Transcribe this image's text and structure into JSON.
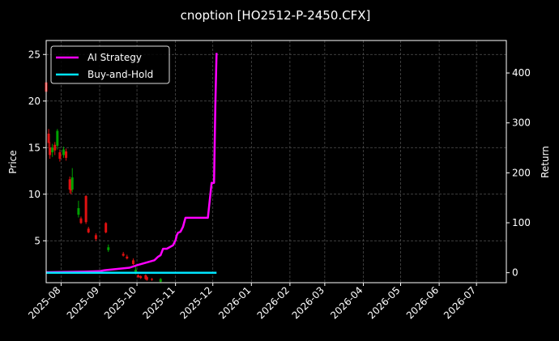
{
  "chart_data": {
    "type": "candlestick+line",
    "title": "cnoption [HO2512-P-2450.CFX]",
    "ylabel_left": "Price",
    "ylabel_right": "Return",
    "xlabel": "",
    "x_ticks": [
      "2025-08",
      "2025-09",
      "2025-10",
      "2025-11",
      "2025-12",
      "2026-01",
      "2026-02",
      "2026-03",
      "2026-04",
      "2026-05",
      "2026-06",
      "2026-07"
    ],
    "xlim": [
      "2025-07-20",
      "2026-07-25"
    ],
    "ylim_left": [
      0.5,
      26.5
    ],
    "yticks_left": [
      5,
      10,
      15,
      20,
      25
    ],
    "ylim_right": [
      -20,
      465
    ],
    "yticks_right": [
      0,
      100,
      200,
      300,
      400
    ],
    "grid": true,
    "legend_position": "top-left",
    "series": [
      {
        "name": "AI Strategy",
        "color": "#ff00ff",
        "axis": "right",
        "x": [
          "2025-07-20",
          "2025-08-20",
          "2025-09-01",
          "2025-09-05",
          "2025-09-25",
          "2025-10-01",
          "2025-10-15",
          "2025-10-18",
          "2025-10-20",
          "2025-10-22",
          "2025-10-25",
          "2025-10-30",
          "2025-11-01",
          "2025-11-02",
          "2025-11-03",
          "2025-11-05",
          "2025-11-07",
          "2025-11-09",
          "2025-11-10",
          "2025-11-11",
          "2025-11-12",
          "2025-11-15",
          "2025-11-18",
          "2025-11-20",
          "2025-11-25",
          "2025-11-27",
          "2025-11-30",
          "2025-12-01",
          "2025-12-02",
          "2025-12-03",
          "2025-12-04"
        ],
        "values": [
          1,
          2,
          3,
          5,
          10,
          15,
          25,
          32,
          35,
          48,
          48,
          55,
          65,
          75,
          80,
          82,
          92,
          110,
          110,
          110,
          110,
          110,
          110,
          110,
          110,
          110,
          180,
          180,
          180,
          335,
          440
        ]
      },
      {
        "name": "Buy-and-Hold",
        "color": "#00e5ff",
        "axis": "right",
        "x": [
          "2025-07-20",
          "2025-12-04"
        ],
        "values": [
          0,
          0
        ]
      }
    ],
    "candles": [
      {
        "date": "2025-07-20",
        "open": 22.0,
        "close": 21.0,
        "high": 22.8,
        "low": 21.0
      },
      {
        "date": "2025-07-22",
        "open": 16.5,
        "close": 15.5,
        "high": 17.0,
        "low": 15.0
      },
      {
        "date": "2025-07-23",
        "open": 15.0,
        "close": 14.2,
        "high": 15.6,
        "low": 13.8
      },
      {
        "date": "2025-07-25",
        "open": 14.5,
        "close": 15.0,
        "high": 15.4,
        "low": 14.0
      },
      {
        "date": "2025-07-27",
        "open": 15.3,
        "close": 14.7,
        "high": 15.6,
        "low": 14.2
      },
      {
        "date": "2025-07-29",
        "open": 15.2,
        "close": 16.8,
        "high": 17.0,
        "low": 14.8
      },
      {
        "date": "2025-07-31",
        "open": 14.5,
        "close": 13.8,
        "high": 14.8,
        "low": 13.5
      },
      {
        "date": "2025-08-03",
        "open": 14.2,
        "close": 14.8,
        "high": 15.1,
        "low": 13.9
      },
      {
        "date": "2025-08-05",
        "open": 14.6,
        "close": 13.9,
        "high": 14.9,
        "low": 13.6
      },
      {
        "date": "2025-08-08",
        "open": 11.6,
        "close": 10.5,
        "high": 11.9,
        "low": 10.1
      },
      {
        "date": "2025-08-09",
        "open": 11.2,
        "close": 10.4,
        "high": 11.6,
        "low": 10.0
      },
      {
        "date": "2025-08-10",
        "open": 10.5,
        "close": 11.8,
        "high": 12.8,
        "low": 10.2
      },
      {
        "date": "2025-08-15",
        "open": 7.8,
        "close": 8.5,
        "high": 9.3,
        "low": 7.5
      },
      {
        "date": "2025-08-17",
        "open": 7.4,
        "close": 6.9,
        "high": 7.6,
        "low": 6.8
      },
      {
        "date": "2025-08-21",
        "open": 9.8,
        "close": 7.0,
        "high": 9.9,
        "low": 6.8
      },
      {
        "date": "2025-08-23",
        "open": 6.3,
        "close": 5.9,
        "high": 6.5,
        "low": 5.8
      },
      {
        "date": "2025-08-29",
        "open": 5.6,
        "close": 5.2,
        "high": 5.8,
        "low": 5.0
      },
      {
        "date": "2025-09-06",
        "open": 6.9,
        "close": 5.9,
        "high": 7.0,
        "low": 5.8
      },
      {
        "date": "2025-09-08",
        "open": 4.0,
        "close": 4.3,
        "high": 4.6,
        "low": 3.8
      },
      {
        "date": "2025-09-20",
        "open": 3.6,
        "close": 3.4,
        "high": 3.8,
        "low": 3.3
      },
      {
        "date": "2025-09-23",
        "open": 3.3,
        "close": 3.1,
        "high": 3.5,
        "low": 3.0
      },
      {
        "date": "2025-09-28",
        "open": 2.9,
        "close": 2.5,
        "high": 3.1,
        "low": 2.4
      },
      {
        "date": "2025-09-30",
        "open": 1.5,
        "close": 1.9,
        "high": 2.3,
        "low": 1.4
      },
      {
        "date": "2025-10-02",
        "open": 1.3,
        "close": 1.1,
        "high": 1.4,
        "low": 1.0
      },
      {
        "date": "2025-10-04",
        "open": 1.2,
        "close": 1.0,
        "high": 1.3,
        "low": 0.9
      },
      {
        "date": "2025-10-08",
        "open": 1.3,
        "close": 0.9,
        "high": 1.4,
        "low": 0.8
      },
      {
        "date": "2025-10-09",
        "open": 1.1,
        "close": 0.8,
        "high": 1.2,
        "low": 0.7
      },
      {
        "date": "2025-10-13",
        "open": 0.9,
        "close": 0.8,
        "high": 1.0,
        "low": 0.7
      },
      {
        "date": "2025-10-20",
        "open": 0.6,
        "close": 0.9,
        "high": 1.0,
        "low": 0.5
      }
    ]
  }
}
